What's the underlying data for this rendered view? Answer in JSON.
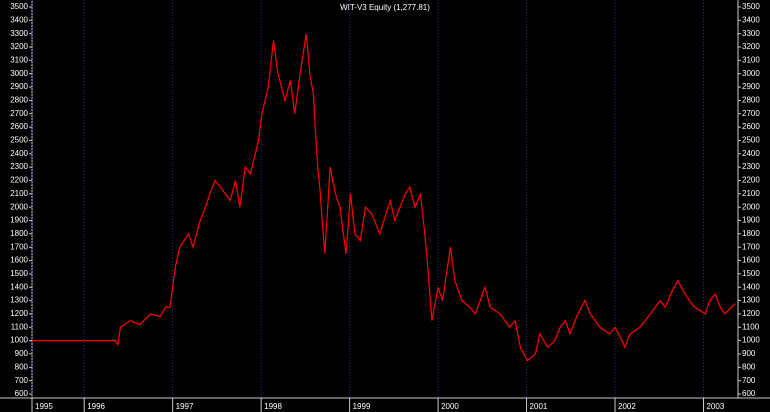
{
  "chart_data": {
    "type": "line",
    "title": "WIT-V3 Equity (1,277.81)",
    "x": [
      1995.41,
      1996.35,
      1996.38,
      1996.41,
      1996.52,
      1996.63,
      1996.75,
      1996.86,
      1996.92,
      1996.97,
      1997.03,
      1997.08,
      1997.18,
      1997.23,
      1997.31,
      1997.37,
      1997.42,
      1997.48,
      1997.54,
      1997.65,
      1997.71,
      1997.76,
      1997.82,
      1997.88,
      1997.97,
      1998.01,
      1998.08,
      1998.14,
      1998.19,
      1998.27,
      1998.33,
      1998.38,
      1998.44,
      1998.51,
      1998.55,
      1998.59,
      1998.62,
      1998.64,
      1998.67,
      1998.69,
      1998.72,
      1998.78,
      1998.84,
      1998.89,
      1998.96,
      1999.01,
      1999.06,
      1999.12,
      1999.18,
      1999.25,
      1999.34,
      1999.46,
      1999.51,
      1999.63,
      1999.68,
      1999.74,
      1999.8,
      1999.85,
      1999.89,
      1999.93,
      2000.0,
      2000.05,
      2000.14,
      2000.19,
      2000.27,
      2000.36,
      2000.42,
      2000.53,
      2000.59,
      2000.7,
      2000.81,
      2000.87,
      2000.93,
      2001.01,
      2001.1,
      2001.15,
      2001.24,
      2001.32,
      2001.38,
      2001.44,
      2001.49,
      2001.58,
      2001.66,
      2001.72,
      2001.83,
      2001.94,
      2002.0,
      2002.08,
      2002.11,
      2002.17,
      2002.28,
      2002.34,
      2002.4,
      2002.51,
      2002.57,
      2002.63,
      2002.71,
      2002.79,
      2002.84,
      2002.9,
      2003.02,
      2003.07,
      2003.13,
      2003.19,
      2003.24,
      2003.36
    ],
    "series": [
      {
        "color": "#ff0000",
        "values": [
          1000,
          1000,
          970,
          1100,
          1150,
          1120,
          1200,
          1180,
          1250,
          1250,
          1550,
          1700,
          1800,
          1700,
          1900,
          2000,
          2100,
          2200,
          2150,
          2050,
          2200,
          2000,
          2300,
          2250,
          2500,
          2700,
          2900,
          3250,
          3000,
          2800,
          2950,
          2700,
          3000,
          3300,
          3000,
          2850,
          2500,
          2300,
          2100,
          1900,
          1650,
          2300,
          2100,
          2000,
          1650,
          2100,
          1800,
          1750,
          2000,
          1950,
          1800,
          2050,
          1900,
          2100,
          2150,
          2000,
          2100,
          1800,
          1500,
          1150,
          1400,
          1300,
          1700,
          1450,
          1300,
          1250,
          1200,
          1400,
          1250,
          1200,
          1100,
          1150,
          950,
          850,
          900,
          1050,
          950,
          1000,
          1100,
          1150,
          1050,
          1200,
          1300,
          1200,
          1100,
          1050,
          1100,
          1000,
          950,
          1050,
          1100,
          1150,
          1200,
          1300,
          1250,
          1350,
          1450,
          1350,
          1300,
          1250,
          1200,
          1300,
          1350,
          1250,
          1200,
          1277.81
        ]
      }
    ],
    "xlim": [
      1995.41,
      2003.39
    ],
    "xticks": [
      {
        "value": 1995.41,
        "label": "1995"
      },
      1996,
      1997,
      1998,
      1999,
      2000,
      2001,
      2002,
      2003
    ],
    "ylim": [
      600,
      3500
    ],
    "yticks": [
      600,
      700,
      800,
      900,
      1000,
      1100,
      1200,
      1300,
      1400,
      1500,
      1600,
      1700,
      1800,
      1900,
      2000,
      2100,
      2200,
      2300,
      2400,
      2500,
      2600,
      2700,
      2800,
      2900,
      3000,
      3100,
      3200,
      3300,
      3400,
      3500
    ],
    "grid": true
  }
}
